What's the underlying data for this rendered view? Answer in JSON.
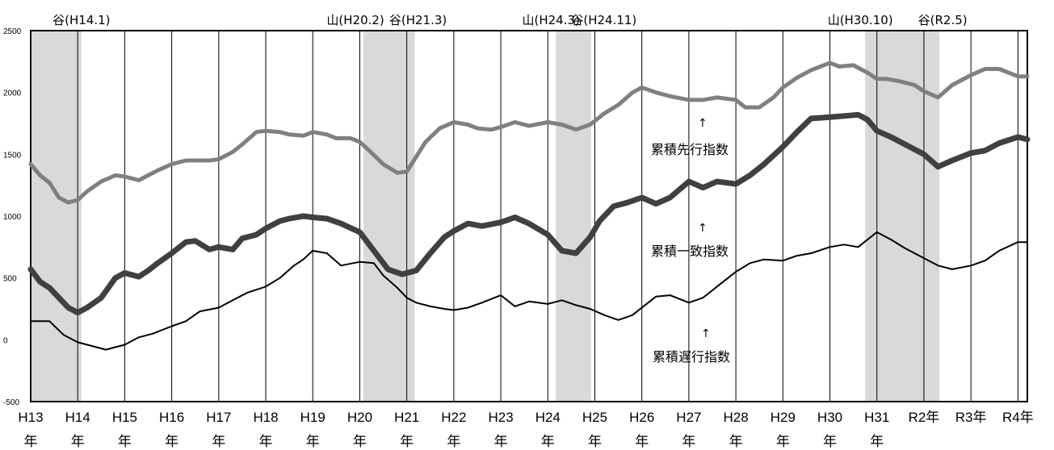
{
  "chart_data": {
    "type": "line",
    "xlabel": "",
    "ylabel": "",
    "ylim": [
      -500,
      2500
    ],
    "y_ticks": [
      "2500",
      "2000",
      "1500",
      "1000",
      "500",
      "0",
      "-500"
    ],
    "x_tick_labels": [
      "H13",
      "H14",
      "H15",
      "H16",
      "H17",
      "H18",
      "H19",
      "H20",
      "H21",
      "H22",
      "H23",
      "H24",
      "H25",
      "H26",
      "H27",
      "H28",
      "H29",
      "H30",
      "H31",
      "R2年",
      "R3年",
      "R4年"
    ],
    "x_tick_nen": [
      "年",
      "年",
      "年",
      "年",
      "年",
      "年",
      "年",
      "年",
      "年",
      "年",
      "年",
      "年",
      "年",
      "年",
      "年",
      "年",
      "年",
      "年",
      "年",
      "",
      "",
      ""
    ],
    "x_range": [
      2001,
      2022.2
    ],
    "gridlines": "vertical-yearly",
    "shaded_periods": [
      {
        "start": 2001.0,
        "end": 2002.08
      },
      {
        "start": 2008.08,
        "end": 2009.17
      },
      {
        "start": 2012.17,
        "end": 2012.92
      },
      {
        "start": 2018.75,
        "end": 2020.33
      }
    ],
    "cycle_labels": [
      "谷(H14.1)",
      "山(H20.2)",
      "谷(H21.3)",
      "山(H24.3)",
      "谷(H24.11)",
      "山(H30.10)",
      "谷(R2.5)"
    ],
    "cycle_label_dates": [
      2002.08,
      2008.08,
      2009.17,
      2012.17,
      2012.92,
      2018.75,
      2020.33
    ],
    "series": [
      {
        "name": "累積先行指数",
        "color": "#808080",
        "x": [
          2001.0,
          2001.2,
          2001.4,
          2001.6,
          2001.8,
          2002.0,
          2002.2,
          2002.5,
          2002.8,
          2003.0,
          2003.3,
          2003.5,
          2003.7,
          2004.0,
          2004.3,
          2004.5,
          2004.8,
          2005.0,
          2005.3,
          2005.5,
          2005.8,
          2006.0,
          2006.3,
          2006.5,
          2006.8,
          2007.0,
          2007.3,
          2007.5,
          2007.8,
          2008.0,
          2008.2,
          2008.5,
          2008.8,
          2009.0,
          2009.2,
          2009.4,
          2009.7,
          2010.0,
          2010.3,
          2010.5,
          2010.8,
          2011.0,
          2011.3,
          2011.6,
          2012.0,
          2012.3,
          2012.6,
          2012.9,
          2013.2,
          2013.5,
          2013.8,
          2014.0,
          2014.3,
          2014.6,
          2015.0,
          2015.3,
          2015.6,
          2016.0,
          2016.2,
          2016.5,
          2016.8,
          2017.0,
          2017.3,
          2017.6,
          2018.0,
          2018.2,
          2018.5,
          2018.8,
          2019.0,
          2019.2,
          2019.5,
          2019.8,
          2020.0,
          2020.3,
          2020.6,
          2021.0,
          2021.3,
          2021.6,
          2022.0,
          2022.2
        ],
        "values": [
          1420,
          1330,
          1270,
          1150,
          1110,
          1130,
          1200,
          1280,
          1330,
          1320,
          1290,
          1330,
          1370,
          1420,
          1450,
          1450,
          1450,
          1460,
          1520,
          1580,
          1680,
          1690,
          1680,
          1660,
          1650,
          1680,
          1660,
          1630,
          1630,
          1600,
          1530,
          1420,
          1350,
          1360,
          1480,
          1600,
          1710,
          1760,
          1740,
          1710,
          1700,
          1720,
          1760,
          1730,
          1760,
          1740,
          1700,
          1740,
          1830,
          1900,
          2000,
          2040,
          2000,
          1970,
          1940,
          1940,
          1960,
          1940,
          1880,
          1880,
          1960,
          2040,
          2120,
          2180,
          2240,
          2210,
          2220,
          2160,
          2110,
          2110,
          2090,
          2060,
          2010,
          1960,
          2060,
          2140,
          2190,
          2190,
          2130,
          2130
        ],
        "line_width": 5
      },
      {
        "name": "累積一致指数",
        "color": "#404040",
        "x": [
          2001.0,
          2001.2,
          2001.4,
          2001.6,
          2001.8,
          2002.0,
          2002.2,
          2002.5,
          2002.8,
          2003.0,
          2003.3,
          2003.5,
          2003.7,
          2004.0,
          2004.3,
          2004.5,
          2004.8,
          2005.0,
          2005.3,
          2005.5,
          2005.8,
          2006.0,
          2006.3,
          2006.5,
          2006.8,
          2007.0,
          2007.3,
          2007.6,
          2008.0,
          2008.3,
          2008.6,
          2008.9,
          2009.2,
          2009.5,
          2009.8,
          2010.0,
          2010.3,
          2010.6,
          2011.0,
          2011.3,
          2011.6,
          2012.0,
          2012.3,
          2012.6,
          2012.9,
          2013.1,
          2013.4,
          2013.7,
          2014.0,
          2014.3,
          2014.6,
          2015.0,
          2015.3,
          2015.6,
          2016.0,
          2016.3,
          2016.6,
          2017.0,
          2017.3,
          2017.6,
          2018.0,
          2018.3,
          2018.6,
          2018.8,
          2019.0,
          2019.3,
          2019.6,
          2020.0,
          2020.3,
          2020.6,
          2021.0,
          2021.3,
          2021.6,
          2022.0,
          2022.2
        ],
        "values": [
          570,
          470,
          420,
          340,
          260,
          220,
          260,
          340,
          500,
          540,
          510,
          560,
          620,
          700,
          790,
          800,
          730,
          750,
          730,
          820,
          850,
          900,
          960,
          980,
          1000,
          990,
          980,
          940,
          870,
          720,
          570,
          530,
          560,
          700,
          830,
          880,
          940,
          920,
          950,
          990,
          940,
          850,
          720,
          700,
          830,
          960,
          1080,
          1110,
          1150,
          1100,
          1150,
          1280,
          1230,
          1280,
          1260,
          1330,
          1420,
          1560,
          1680,
          1790,
          1800,
          1810,
          1820,
          1780,
          1690,
          1640,
          1580,
          1500,
          1400,
          1450,
          1510,
          1530,
          1590,
          1640,
          1620
        ],
        "line_width": 7
      },
      {
        "name": "累積遅行指数",
        "color": "#000000",
        "x": [
          2001.0,
          2001.4,
          2001.7,
          2002.0,
          2002.3,
          2002.6,
          2002.8,
          2003.0,
          2003.3,
          2003.6,
          2004.0,
          2004.3,
          2004.6,
          2005.0,
          2005.3,
          2005.6,
          2006.0,
          2006.3,
          2006.6,
          2006.8,
          2007.0,
          2007.3,
          2007.6,
          2008.0,
          2008.3,
          2008.5,
          2008.8,
          2009.0,
          2009.2,
          2009.5,
          2009.8,
          2010.0,
          2010.3,
          2010.6,
          2011.0,
          2011.3,
          2011.6,
          2012.0,
          2012.3,
          2012.6,
          2012.9,
          2013.2,
          2013.5,
          2013.8,
          2014.0,
          2014.3,
          2014.6,
          2015.0,
          2015.3,
          2015.6,
          2016.0,
          2016.3,
          2016.6,
          2017.0,
          2017.3,
          2017.6,
          2018.0,
          2018.3,
          2018.6,
          2019.0,
          2019.3,
          2019.6,
          2020.0,
          2020.3,
          2020.6,
          2021.0,
          2021.3,
          2021.6,
          2022.0,
          2022.2
        ],
        "values": [
          150,
          150,
          40,
          -20,
          -50,
          -80,
          -60,
          -40,
          20,
          50,
          110,
          150,
          230,
          260,
          320,
          380,
          430,
          500,
          600,
          650,
          720,
          700,
          600,
          630,
          620,
          520,
          420,
          340,
          300,
          270,
          250,
          240,
          260,
          300,
          360,
          270,
          310,
          290,
          320,
          280,
          250,
          200,
          160,
          200,
          260,
          350,
          360,
          300,
          340,
          430,
          550,
          620,
          650,
          640,
          680,
          700,
          750,
          770,
          750,
          870,
          810,
          740,
          660,
          600,
          570,
          600,
          640,
          720,
          790,
          790
        ],
        "line_width": 2
      }
    ]
  }
}
